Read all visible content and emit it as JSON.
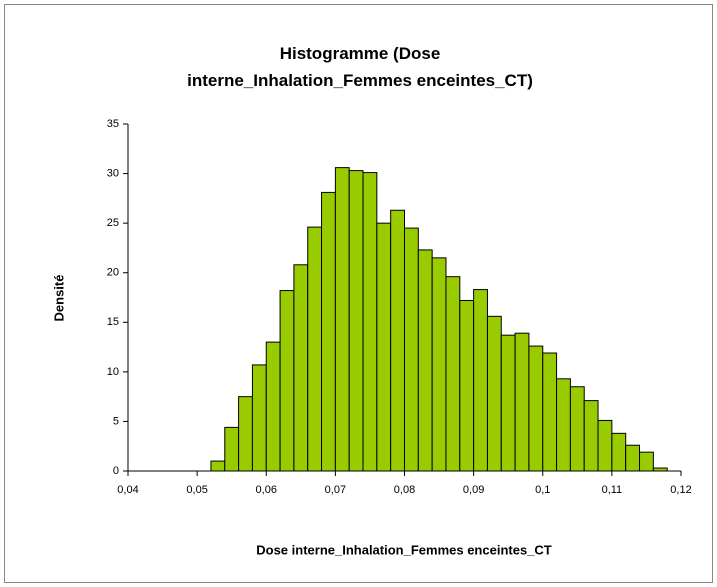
{
  "chart_data": {
    "type": "histogram",
    "title": "Histogramme (Dose interne_Inhalation_Femmes enceintes_CT)",
    "xlabel": "Dose interne_Inhalation_Femmes enceintes_CT",
    "ylabel": "Densité",
    "bins": [
      0.052,
      0.054,
      0.056,
      0.058,
      0.06,
      0.062,
      0.064,
      0.066,
      0.068,
      0.07,
      0.072,
      0.074,
      0.076,
      0.078,
      0.08,
      0.082,
      0.084,
      0.086,
      0.088,
      0.09,
      0.092,
      0.094,
      0.096,
      0.098,
      0.1,
      0.102,
      0.104,
      0.106,
      0.108,
      0.11,
      0.112,
      0.114,
      0.116,
      0.118
    ],
    "values": [
      1.0,
      4.4,
      7.5,
      10.7,
      13.0,
      18.2,
      20.8,
      24.6,
      28.1,
      30.6,
      30.3,
      30.1,
      25.0,
      26.3,
      24.5,
      22.3,
      21.5,
      19.6,
      17.2,
      18.3,
      15.6,
      13.7,
      13.9,
      12.6,
      11.9,
      9.3,
      8.5,
      7.1,
      5.1,
      3.8,
      2.6,
      1.9,
      0.3
    ],
    "color": "#99cc00",
    "xlim": [
      0.04,
      0.12
    ],
    "xticks": [
      {
        "value": 0.04,
        "label": "0,04"
      },
      {
        "value": 0.05,
        "label": "0,05"
      },
      {
        "value": 0.06,
        "label": "0,06"
      },
      {
        "value": 0.07,
        "label": "0,07"
      },
      {
        "value": 0.08,
        "label": "0,08"
      },
      {
        "value": 0.09,
        "label": "0,09"
      },
      {
        "value": 0.1,
        "label": "0,1"
      },
      {
        "value": 0.11,
        "label": "0,11"
      },
      {
        "value": 0.12,
        "label": "0,12"
      }
    ],
    "ylim": [
      0,
      35
    ],
    "yticks": [
      0,
      5,
      10,
      15,
      20,
      25,
      30,
      35
    ],
    "grid": false
  }
}
